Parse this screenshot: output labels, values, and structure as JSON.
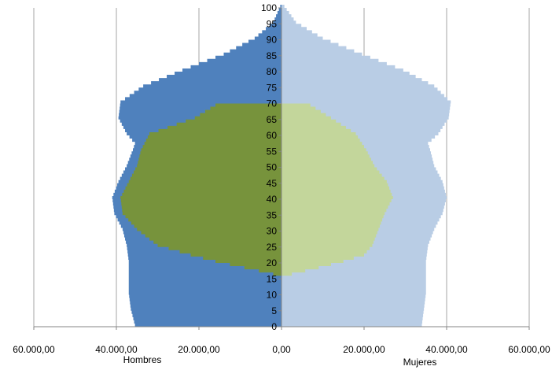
{
  "chart_data": {
    "type": "population_pyramid",
    "x_axis": {
      "range": [
        -60000,
        60000
      ],
      "tick_values": [
        -60000,
        -40000,
        -20000,
        0,
        20000,
        40000,
        60000
      ],
      "tick_labels": [
        "60.000,00",
        "40.000,00",
        "20.000,00",
        "0,00",
        "20.000,00",
        "40.000,00",
        "60.000,00"
      ],
      "left_label": "Hombres",
      "right_label": "Mujeres",
      "grid": true
    },
    "y_axis": {
      "range": [
        0,
        100
      ],
      "tick_values": [
        0,
        5,
        10,
        15,
        20,
        25,
        30,
        35,
        40,
        45,
        50,
        55,
        60,
        65,
        70,
        75,
        80,
        85,
        90,
        95,
        100
      ],
      "tick_labels": [
        "0",
        "5",
        "10",
        "15",
        "20",
        "25",
        "30",
        "35",
        "40",
        "45",
        "50",
        "55",
        "60",
        "65",
        "70",
        "75",
        "80",
        "85",
        "90",
        "95",
        "100"
      ]
    },
    "colors": {
      "male_total": "#4f81bd",
      "female_total": "#b9cde5",
      "male_inner": "#77933c",
      "female_inner": "#c3d69b"
    },
    "series": [
      {
        "side": "male",
        "layer": "outer",
        "ages": [
          0,
          5,
          10,
          15,
          20,
          25,
          30,
          35,
          40,
          45,
          50,
          55,
          57,
          60,
          65,
          70,
          75,
          80,
          85,
          90,
          95,
          100
        ],
        "values": [
          35500,
          36500,
          37000,
          37000,
          37000,
          37500,
          38500,
          40500,
          41000,
          39500,
          37500,
          36000,
          35500,
          37500,
          39500,
          39000,
          33500,
          24000,
          14000,
          6500,
          2000,
          300
        ]
      },
      {
        "side": "female",
        "layer": "outer",
        "ages": [
          0,
          5,
          10,
          15,
          20,
          25,
          30,
          35,
          40,
          45,
          50,
          55,
          57,
          60,
          65,
          70,
          75,
          80,
          85,
          90,
          95,
          100
        ],
        "values": [
          34000,
          34500,
          35000,
          35000,
          35000,
          35500,
          37000,
          39000,
          40000,
          39000,
          37000,
          36000,
          35500,
          38000,
          40500,
          41000,
          37000,
          29500,
          19500,
          10000,
          3500,
          700
        ]
      },
      {
        "side": "male",
        "layer": "inner",
        "ages": [
          15,
          16,
          18,
          20,
          22,
          25,
          30,
          35,
          40,
          45,
          50,
          55,
          60,
          65,
          69
        ],
        "values": [
          0,
          2000,
          9000,
          16000,
          22000,
          30000,
          35000,
          38500,
          39000,
          37000,
          35000,
          34000,
          32000,
          21000,
          16000
        ]
      },
      {
        "side": "female",
        "layer": "inner",
        "ages": [
          15,
          16,
          18,
          20,
          22,
          25,
          30,
          35,
          40,
          45,
          50,
          55,
          60,
          65,
          69
        ],
        "values": [
          0,
          2500,
          9000,
          15000,
          20000,
          22000,
          23500,
          25000,
          27000,
          25500,
          22500,
          20500,
          18000,
          12000,
          7000
        ]
      }
    ]
  }
}
